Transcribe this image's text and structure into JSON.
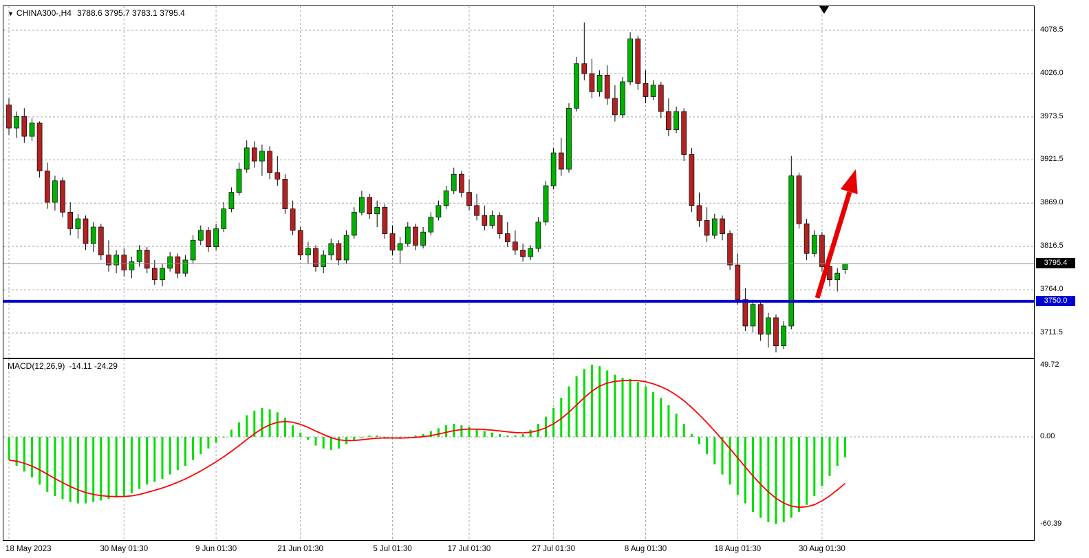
{
  "header": {
    "symbol": "CHINA300-,H4",
    "ohlc": "3788.6 3795.7 3783.1 3795.4"
  },
  "macd_panel": {
    "label": "MACD(12,26,9)",
    "values": "-14.11 -24.29"
  },
  "price_axis": {
    "labels": [
      {
        "text": "4078.5",
        "value": 4078.5
      },
      {
        "text": "4026.0",
        "value": 4026.0
      },
      {
        "text": "3973.5",
        "value": 3973.5
      },
      {
        "text": "3921.5",
        "value": 3921.5
      },
      {
        "text": "3869.0",
        "value": 3869.0
      },
      {
        "text": "3816.5",
        "value": 3816.5
      },
      {
        "text": "3764.0",
        "value": 3764.0
      },
      {
        "text": "3711.5",
        "value": 3711.5
      }
    ],
    "current_price_badge": {
      "text": "3795.4",
      "value": 3795.4
    },
    "level_badge": {
      "text": "3750.0",
      "value": 3750.0
    }
  },
  "macd_axis": {
    "labels": [
      {
        "text": "49.72",
        "value": 49.72
      },
      {
        "text": "0.00",
        "value": 0
      },
      {
        "text": "-60.39",
        "value": -60.39
      }
    ]
  },
  "time_axis": {
    "labels": [
      {
        "text": "18 May 2023",
        "index": 0
      },
      {
        "text": "30 May 01:30",
        "index": 15
      },
      {
        "text": "9 Jun 01:30",
        "index": 27
      },
      {
        "text": "21 Jun 01:30",
        "index": 38
      },
      {
        "text": "5 Jul 01:30",
        "index": 50
      },
      {
        "text": "17 Jul 01:30",
        "index": 60
      },
      {
        "text": "27 Jul 01:30",
        "index": 71
      },
      {
        "text": "8 Aug 01:30",
        "index": 83
      },
      {
        "text": "18 Aug 01:30",
        "index": 95
      },
      {
        "text": "30 Aug 01:30",
        "index": 106
      }
    ]
  },
  "colors": {
    "up": "#00b200",
    "down": "#b22222",
    "hist": "#00dd00",
    "signal": "#ff0000",
    "level": "#0000d2",
    "arrow": "#e80000",
    "grid": "#a9a9a9",
    "current_line": "#8a8a8a",
    "badge_current_bg": "#000000",
    "badge_level_bg": "#0000d2"
  },
  "chart_data": [
    {
      "type": "candlestick",
      "title": "CHINA300- H4",
      "ylim": [
        3681,
        4108
      ],
      "current_price": 3795.4,
      "support_line": 3750.0,
      "annotation": "thick red up-right arrow from support line toward 3910",
      "ohlc": [
        [
          3988,
          3996,
          3952,
          3960
        ],
        [
          3960,
          3980,
          3948,
          3974
        ],
        [
          3974,
          3984,
          3942,
          3950
        ],
        [
          3950,
          3972,
          3944,
          3966
        ],
        [
          3966,
          3968,
          3900,
          3908
        ],
        [
          3908,
          3918,
          3862,
          3870
        ],
        [
          3870,
          3902,
          3860,
          3896
        ],
        [
          3896,
          3900,
          3852,
          3858
        ],
        [
          3858,
          3870,
          3830,
          3838
        ],
        [
          3838,
          3856,
          3826,
          3850
        ],
        [
          3850,
          3854,
          3812,
          3820
        ],
        [
          3820,
          3846,
          3810,
          3840
        ],
        [
          3840,
          3844,
          3800,
          3806
        ],
        [
          3806,
          3824,
          3786,
          3794
        ],
        [
          3794,
          3812,
          3784,
          3806
        ],
        [
          3806,
          3814,
          3780,
          3788
        ],
        [
          3788,
          3804,
          3778,
          3798
        ],
        [
          3798,
          3818,
          3792,
          3812
        ],
        [
          3812,
          3816,
          3784,
          3790
        ],
        [
          3790,
          3800,
          3770,
          3776
        ],
        [
          3776,
          3796,
          3768,
          3790
        ],
        [
          3790,
          3810,
          3786,
          3804
        ],
        [
          3804,
          3808,
          3778,
          3784
        ],
        [
          3784,
          3806,
          3780,
          3800
        ],
        [
          3800,
          3830,
          3796,
          3824
        ],
        [
          3824,
          3842,
          3818,
          3836
        ],
        [
          3836,
          3840,
          3810,
          3816
        ],
        [
          3816,
          3844,
          3812,
          3838
        ],
        [
          3838,
          3870,
          3834,
          3862
        ],
        [
          3862,
          3888,
          3858,
          3882
        ],
        [
          3882,
          3918,
          3878,
          3910
        ],
        [
          3910,
          3945,
          3906,
          3936
        ],
        [
          3936,
          3944,
          3912,
          3920
        ],
        [
          3920,
          3940,
          3902,
          3932
        ],
        [
          3932,
          3938,
          3898,
          3906
        ],
        [
          3906,
          3926,
          3890,
          3898
        ],
        [
          3898,
          3904,
          3856,
          3862
        ],
        [
          3862,
          3872,
          3830,
          3836
        ],
        [
          3836,
          3840,
          3800,
          3806
        ],
        [
          3806,
          3822,
          3796,
          3814
        ],
        [
          3814,
          3818,
          3786,
          3792
        ],
        [
          3792,
          3812,
          3784,
          3806
        ],
        [
          3806,
          3826,
          3800,
          3820
        ],
        [
          3820,
          3824,
          3794,
          3800
        ],
        [
          3800,
          3836,
          3796,
          3830
        ],
        [
          3830,
          3864,
          3826,
          3858
        ],
        [
          3858,
          3884,
          3854,
          3876
        ],
        [
          3876,
          3880,
          3850,
          3856
        ],
        [
          3856,
          3872,
          3840,
          3864
        ],
        [
          3864,
          3868,
          3826,
          3832
        ],
        [
          3832,
          3842,
          3806,
          3812
        ],
        [
          3812,
          3828,
          3796,
          3820
        ],
        [
          3820,
          3846,
          3816,
          3840
        ],
        [
          3840,
          3844,
          3812,
          3818
        ],
        [
          3818,
          3840,
          3814,
          3834
        ],
        [
          3834,
          3858,
          3830,
          3852
        ],
        [
          3852,
          3872,
          3848,
          3866
        ],
        [
          3866,
          3890,
          3862,
          3884
        ],
        [
          3884,
          3912,
          3880,
          3904
        ],
        [
          3904,
          3908,
          3876,
          3882
        ],
        [
          3882,
          3898,
          3860,
          3866
        ],
        [
          3866,
          3880,
          3848,
          3854
        ],
        [
          3854,
          3866,
          3836,
          3842
        ],
        [
          3842,
          3860,
          3838,
          3854
        ],
        [
          3854,
          3858,
          3826,
          3832
        ],
        [
          3832,
          3846,
          3816,
          3822
        ],
        [
          3822,
          3836,
          3806,
          3812
        ],
        [
          3812,
          3820,
          3798,
          3804
        ],
        [
          3804,
          3818,
          3800,
          3814
        ],
        [
          3814,
          3852,
          3810,
          3846
        ],
        [
          3846,
          3896,
          3842,
          3890
        ],
        [
          3890,
          3936,
          3886,
          3930
        ],
        [
          3930,
          3948,
          3902,
          3910
        ],
        [
          3910,
          3990,
          3906,
          3984
        ],
        [
          3984,
          4046,
          3980,
          4038
        ],
        [
          4038,
          4088,
          4018,
          4026
        ],
        [
          4026,
          4044,
          3996,
          4004
        ],
        [
          4004,
          4030,
          3998,
          4024
        ],
        [
          4024,
          4036,
          3988,
          3996
        ],
        [
          3996,
          4012,
          3968,
          3976
        ],
        [
          3976,
          4022,
          3972,
          4016
        ],
        [
          4016,
          4076,
          4012,
          4068
        ],
        [
          4068,
          4072,
          4006,
          4014
        ],
        [
          4014,
          4030,
          3990,
          3998
        ],
        [
          3998,
          4018,
          3994,
          4012
        ],
        [
          4012,
          4016,
          3972,
          3980
        ],
        [
          3980,
          3996,
          3950,
          3958
        ],
        [
          3958,
          3986,
          3954,
          3980
        ],
        [
          3980,
          3984,
          3920,
          3928
        ],
        [
          3928,
          3936,
          3858,
          3866
        ],
        [
          3866,
          3882,
          3840,
          3848
        ],
        [
          3848,
          3864,
          3822,
          3830
        ],
        [
          3830,
          3856,
          3826,
          3850
        ],
        [
          3850,
          3854,
          3824,
          3832
        ],
        [
          3832,
          3836,
          3788,
          3794
        ],
        [
          3794,
          3808,
          3746,
          3752
        ],
        [
          3752,
          3766,
          3714,
          3720
        ],
        [
          3720,
          3752,
          3712,
          3746
        ],
        [
          3746,
          3750,
          3702,
          3710
        ],
        [
          3710,
          3736,
          3694,
          3730
        ],
        [
          3730,
          3734,
          3688,
          3696
        ],
        [
          3696,
          3726,
          3692,
          3720
        ],
        [
          3720,
          3926,
          3716,
          3902
        ],
        [
          3902,
          3906,
          3838,
          3844
        ],
        [
          3844,
          3850,
          3800,
          3808
        ],
        [
          3808,
          3836,
          3804,
          3830
        ],
        [
          3830,
          3834,
          3786,
          3792
        ],
        [
          3792,
          3806,
          3768,
          3776
        ],
        [
          3776,
          3790,
          3762,
          3784
        ],
        [
          3788.6,
          3795.7,
          3783.1,
          3795.4
        ]
      ]
    },
    {
      "type": "bar",
      "name": "MACD(12,26,9) histogram with EMA-9 signal line",
      "ylim": [
        -60.39,
        49.72
      ],
      "last_values": {
        "macd": -14.11,
        "signal": -24.29
      },
      "values": [
        -16,
        -20,
        -24,
        -28,
        -33,
        -38,
        -41,
        -43,
        -45,
        -46,
        -46,
        -45,
        -44,
        -43,
        -42,
        -41,
        -39,
        -36,
        -33,
        -31,
        -29,
        -26,
        -23,
        -20,
        -16,
        -12,
        -8,
        -4,
        0,
        5,
        10,
        15,
        18,
        20,
        19,
        17,
        13,
        8,
        3,
        -2,
        -6,
        -8,
        -9,
        -8,
        -5,
        -2,
        0,
        1,
        1,
        0,
        -1,
        -1,
        0,
        1,
        2,
        4,
        6,
        8,
        9,
        8,
        7,
        5,
        4,
        3,
        2,
        1,
        1,
        2,
        5,
        9,
        14,
        20,
        27,
        35,
        42,
        47,
        50,
        49,
        46,
        43,
        41,
        40,
        38,
        35,
        31,
        27,
        22,
        16,
        9,
        2,
        -5,
        -12,
        -19,
        -26,
        -33,
        -40,
        -46,
        -52,
        -56,
        -59,
        -60.4,
        -59,
        -56,
        -52,
        -47,
        -41,
        -34,
        -27,
        -20,
        -14.11
      ]
    }
  ]
}
